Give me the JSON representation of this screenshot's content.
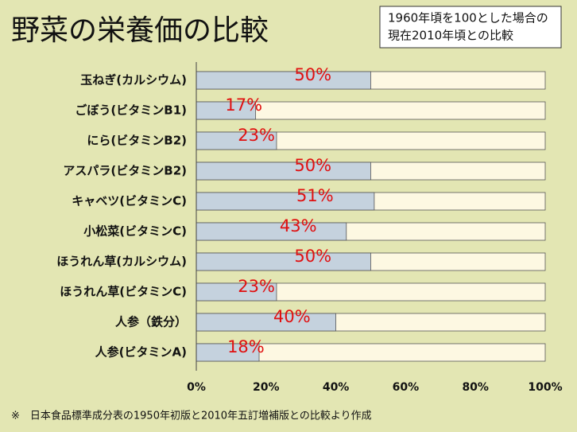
{
  "chart_data": {
    "type": "bar",
    "orientation": "horizontal",
    "title": "野菜の栄養価の比較",
    "subtitle": [
      "1960年頃を100とした場合の",
      "現在2010年頃との比較"
    ],
    "footnote": "※　日本食品標準成分表の1950年初版と2010年五訂増補版との比較より作成",
    "categories": [
      "玉ねぎ(カルシウム)",
      "ごぼう(ビタミンB1)",
      "にら(ビタミンB2)",
      "アスパラ(ビタミンB2)",
      "キャベツ(ビタミンC)",
      "小松菜(ビタミンC)",
      "ほうれん草(カルシウム)",
      "ほうれん草(ビタミンC)",
      "人参（鉄分）",
      "人参(ビタミンA)"
    ],
    "values": [
      50,
      17,
      23,
      50,
      51,
      43,
      50,
      23,
      40,
      18
    ],
    "value_labels": [
      "50%",
      "17%",
      "23%",
      "50%",
      "51%",
      "43%",
      "50%",
      "23%",
      "40%",
      "18%"
    ],
    "color": "#c5d2de",
    "track_color": "#fdf8e2",
    "xlim": [
      0,
      100
    ],
    "xticks": [
      {
        "value": 0,
        "label": "0%"
      },
      {
        "value": 20,
        "label": "20%"
      },
      {
        "value": 40,
        "label": "40%"
      },
      {
        "value": 60,
        "label": "60%"
      },
      {
        "value": 80,
        "label": "80%"
      },
      {
        "value": 100,
        "label": "100%"
      }
    ]
  }
}
